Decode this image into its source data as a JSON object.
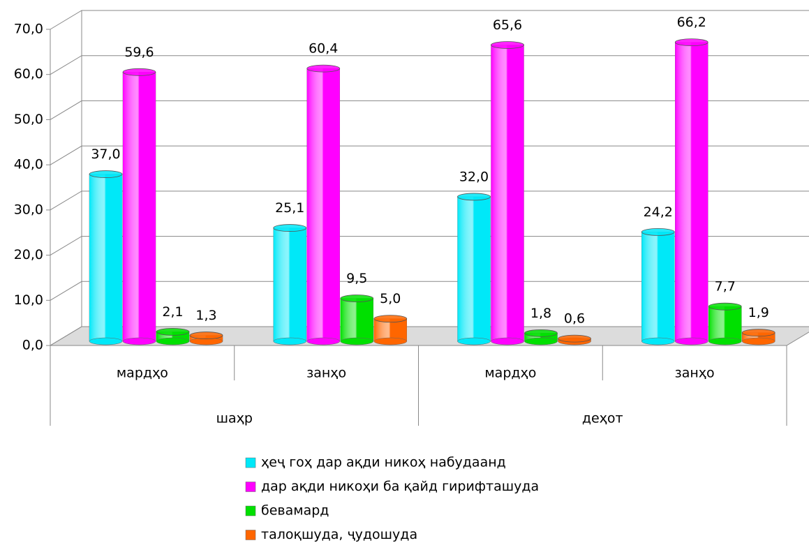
{
  "chart_data": {
    "type": "bar",
    "categories": [
      "мардҳо",
      "занҳо",
      "мардҳо",
      "занҳо"
    ],
    "groups": [
      "шаҳр",
      "деҳот"
    ],
    "series": [
      {
        "name": "ҳеҷ гоҳ дар ақди никоҳ набудаанд",
        "color": "#00e8f8",
        "values": [
          37.0,
          25.1,
          32.0,
          24.2
        ],
        "value_labels": [
          "37,0",
          "25,1",
          "32,0",
          "24,2"
        ]
      },
      {
        "name": "дар ақди никоҳи ба қайд гирифташуда",
        "color": "#ff00ff",
        "values": [
          59.6,
          60.4,
          65.6,
          66.2
        ],
        "value_labels": [
          "59,6",
          "60,4",
          "65,6",
          "66,2"
        ]
      },
      {
        "name": "бевамард",
        "color": "#00e000",
        "values": [
          2.1,
          9.5,
          1.8,
          7.7
        ],
        "value_labels": [
          "2,1",
          "9,5",
          "1,8",
          "7,7"
        ]
      },
      {
        "name": "талоқшуда, ҷудошуда",
        "color": "#ff6600",
        "values": [
          1.3,
          5.0,
          0.6,
          1.9
        ],
        "value_labels": [
          "1,3",
          "5,0",
          "0,6",
          "1,9"
        ]
      }
    ],
    "ylim": [
      0,
      70
    ],
    "yticks": [
      {
        "value": 0,
        "label": "0,0"
      },
      {
        "value": 10,
        "label": "10,0"
      },
      {
        "value": 20,
        "label": "20,0"
      },
      {
        "value": 30,
        "label": "30,0"
      },
      {
        "value": 40,
        "label": "40,0"
      },
      {
        "value": 50,
        "label": "50,0"
      },
      {
        "value": 60,
        "label": "60,0"
      },
      {
        "value": 70,
        "label": "70,0"
      }
    ],
    "grid": true
  }
}
